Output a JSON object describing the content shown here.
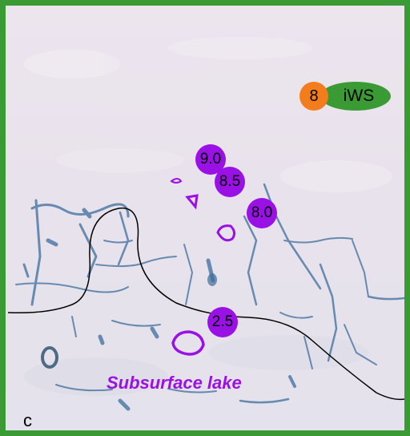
{
  "panel_letter": "c",
  "site": {
    "number": "8",
    "label": "iWS",
    "number_color": "#f37c1c",
    "label_color": "#3a9a34"
  },
  "depth_markers": [
    "9.0",
    "8.5",
    "8.0",
    "2.5"
  ],
  "lake_label": "Subsurface lake",
  "colors": {
    "frame": "#3a9a34",
    "marker": "#9a11e6",
    "ice": "#e9e3ec",
    "meltwater": "#3d6d9c"
  }
}
